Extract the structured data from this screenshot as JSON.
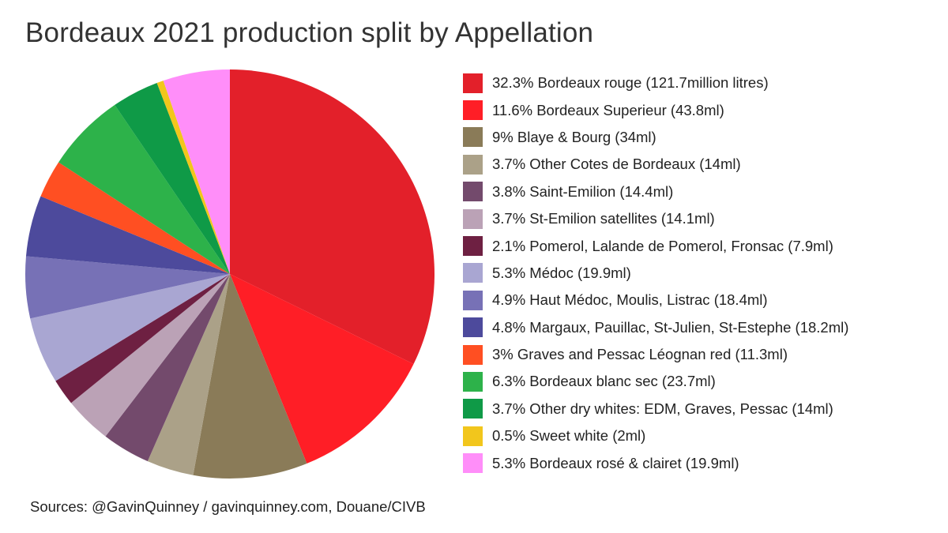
{
  "chart_data": {
    "type": "pie",
    "title": "Bordeaux 2021 production split by Appellation",
    "unit": "million litres",
    "legend_position": "right",
    "slices": [
      {
        "label": "32.3% Bordeaux rouge (121.7million litres)",
        "percent": 32.3,
        "value": 121.7,
        "color": "#e3202a"
      },
      {
        "label": "11.6% Bordeaux Superieur (43.8ml)",
        "percent": 11.6,
        "value": 43.8,
        "color": "#ff1e26"
      },
      {
        "label": "9% Blaye & Bourg (34ml)",
        "percent": 9.0,
        "value": 34.0,
        "color": "#8a7b58"
      },
      {
        "label": "3.7% Other Cotes de Bordeaux (14ml)",
        "percent": 3.7,
        "value": 14.0,
        "color": "#aba188"
      },
      {
        "label": "3.8% Saint-Emilion (14.4ml)",
        "percent": 3.8,
        "value": 14.4,
        "color": "#734a6c"
      },
      {
        "label": "3.7% St-Emilion satellites (14.1ml)",
        "percent": 3.7,
        "value": 14.1,
        "color": "#bba2b6"
      },
      {
        "label": "2.1% Pomerol, Lalande de Pomerol, Fronsac (7.9ml)",
        "percent": 2.1,
        "value": 7.9,
        "color": "#6e2042"
      },
      {
        "label": "5.3% Médoc (19.9ml)",
        "percent": 5.3,
        "value": 19.9,
        "color": "#a9a6d2"
      },
      {
        "label": "4.9% Haut Médoc, Moulis, Listrac (18.4ml)",
        "percent": 4.9,
        "value": 18.4,
        "color": "#7771b6"
      },
      {
        "label": "4.8% Margaux, Pauillac, St-Julien, St-Estephe (18.2ml)",
        "percent": 4.8,
        "value": 18.2,
        "color": "#4d4a9c"
      },
      {
        "label": "3% Graves and Pessac Léognan red (11.3ml)",
        "percent": 3.0,
        "value": 11.3,
        "color": "#ff4f22"
      },
      {
        "label": "6.3% Bordeaux blanc sec (23.7ml)",
        "percent": 6.3,
        "value": 23.7,
        "color": "#2db24a"
      },
      {
        "label": "3.7% Other dry whites: EDM, Graves, Pessac (14ml)",
        "percent": 3.7,
        "value": 14.0,
        "color": "#0f9a47"
      },
      {
        "label": "0.5% Sweet white (2ml)",
        "percent": 0.5,
        "value": 2.0,
        "color": "#f2c61c"
      },
      {
        "label": "5.3% Bordeaux rosé & clairet (19.9ml)",
        "percent": 5.3,
        "value": 19.9,
        "color": "#ff8ef9"
      }
    ]
  },
  "source": "Sources: @GavinQuinney / gavinquinney.com, Douane/CIVB"
}
